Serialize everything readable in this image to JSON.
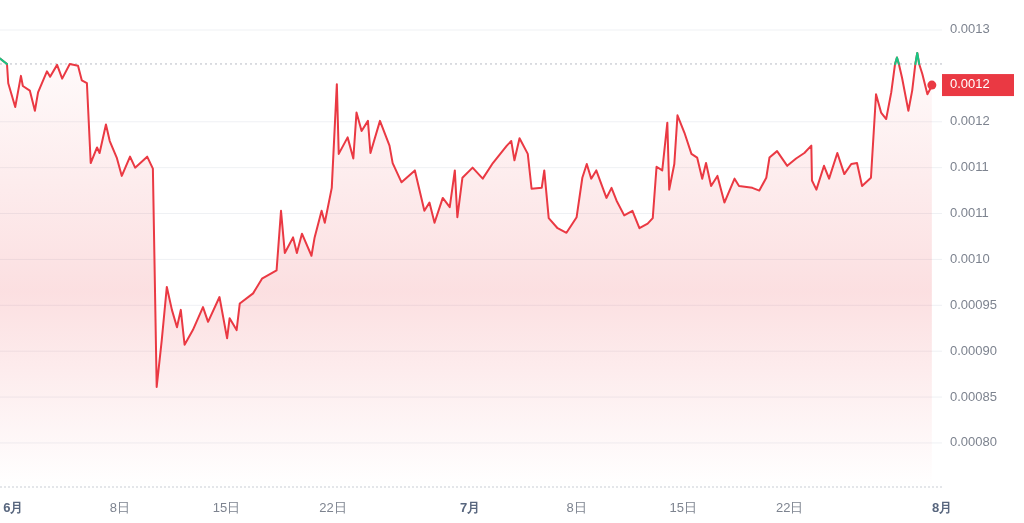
{
  "chart_data": {
    "type": "area",
    "x": [
      "--05-31T03:00",
      "--05-31T14:00",
      "--05-31T16:00",
      "--06-01T03:00",
      "--06-01T12:00",
      "--06-01T15:00",
      "--06-02T02:00",
      "--06-02T10:00",
      "--06-02T15:00",
      "--06-03T05:00",
      "--06-03T10:00",
      "--06-03T21:00",
      "--06-04T05:00",
      "--06-04T17:00",
      "--06-05T06:00",
      "--06-05T12:00",
      "--06-05T20:00",
      "--06-06T02:00",
      "--06-06T12:00",
      "--06-06T16:00",
      "--06-07T02:00",
      "--06-07T08:00",
      "--06-07T19:00",
      "--06-08T03:00",
      "--06-08T16:00",
      "--06-09T00:00",
      "--06-09T19:00",
      "--06-10T04:00",
      "--06-10T10:00",
      "--06-10T18:00",
      "--06-11T02:00",
      "--06-11T10:00",
      "--06-11T18:00",
      "--06-12T00:00",
      "--06-12T06:00",
      "--06-12T19:00",
      "--06-13T11:00",
      "--06-13T19:00",
      "--06-14T13:00",
      "--06-15T01:00",
      "--06-15T05:00",
      "--06-15T16:00",
      "--06-15T21:00",
      "--06-16T18:00",
      "--06-17T08:00",
      "--06-18T07:00",
      "--06-18T14:00",
      "--06-18T20:00",
      "--06-19T09:00",
      "--06-19T15:00",
      "--06-19T23:00",
      "--06-20T14:00",
      "--06-20T19:00",
      "--06-21T06:00",
      "--06-21T11:00",
      "--06-21T22:00",
      "--06-22T06:00",
      "--06-22T09:00",
      "--06-22T23:00",
      "--06-23T08:00",
      "--06-23T13:00",
      "--06-23T21:00",
      "--06-24T07:00",
      "--06-24T11:00",
      "--06-25T02:00",
      "--06-25T17:00",
      "--06-25T22:00",
      "--06-26T12:00",
      "--06-27T09:00",
      "--06-28T00:00",
      "--06-28T08:00",
      "--06-28T16:00",
      "--06-29T05:00",
      "--06-29T16:00",
      "--06-30T00:00",
      "--06-30T04:00",
      "--06-30T12:00",
      "--07-01T04:00",
      "--07-01T20:00",
      "--07-02T12:00",
      "--07-03T10:00",
      "--07-03T17:00",
      "--07-03T22:00",
      "--07-04T06:00",
      "--07-04T19:00",
      "--07-05T01:00",
      "--07-05T17:00",
      "--07-05T21:00",
      "--07-06T04:00",
      "--07-06T18:00",
      "--07-07T08:00",
      "--07-08T00:00",
      "--07-08T09:00",
      "--07-08T16:00",
      "--07-08T23:00",
      "--07-09T07:00",
      "--07-09T23:00",
      "--07-10T07:00",
      "--07-10T15:00",
      "--07-11T03:00",
      "--07-11T16:00",
      "--07-12T03:00",
      "--07-12T16:00",
      "--07-13T00:00",
      "--07-13T06:00",
      "--07-13T15:00",
      "--07-13T23:00",
      "--07-14T02:00",
      "--07-14T10:00",
      "--07-14T15:00",
      "--07-15T02:00",
      "--07-15T13:00",
      "--07-15T22:00",
      "--07-16T06:00",
      "--07-16T12:00",
      "--07-16T20:00",
      "--07-17T06:00",
      "--07-17T17:00",
      "--07-18T09:00",
      "--07-18T16:00",
      "--07-19T13:00",
      "--07-20T00:00",
      "--07-20T11:00",
      "--07-20T16:00",
      "--07-21T04:00",
      "--07-21T20:00",
      "--07-22T10:00",
      "--07-22T23:00",
      "--07-23T10:00",
      "--07-23T11:00",
      "--07-23T18:00",
      "--07-24T06:00",
      "--07-24T14:00",
      "--07-25T03:00",
      "--07-25T14:00",
      "--07-26T01:00",
      "--07-26T10:00",
      "--07-26T18:00",
      "--07-27T08:00",
      "--07-27T16:00",
      "--07-28T00:00",
      "--07-28T08:00",
      "--07-28T16:00",
      "--07-28T22:00",
      "--07-29T01:00",
      "--07-29T04:00",
      "--07-29T09:00",
      "--07-29T19:00",
      "--07-30T01:00",
      "--07-30T06:00",
      "--07-30T09:00",
      "--07-30T12:00",
      "--07-30T17:00",
      "--07-31T01:00",
      "--07-31T08:00"
    ],
    "series": [
      {
        "color": "#ea3943",
        "values": [
          0.001219,
          0.001213,
          0.001192,
          0.001166,
          0.0012,
          0.001189,
          0.001184,
          0.001162,
          0.001182,
          0.001205,
          0.001199,
          0.001212,
          0.001197,
          0.001213,
          0.001211,
          0.001195,
          0.001192,
          0.001105,
          0.001122,
          0.001116,
          0.001147,
          0.001129,
          0.001111,
          0.001091,
          0.001112,
          0.0011,
          0.001112,
          0.001099,
          0.000861,
          0.000912,
          0.00097,
          0.000945,
          0.000926,
          0.000945,
          0.000907,
          0.000923,
          0.000948,
          0.000932,
          0.000959,
          0.000914,
          0.000936,
          0.000923,
          0.000952,
          0.000963,
          0.000979,
          0.000988,
          0.001053,
          0.001007,
          0.001024,
          0.001007,
          0.001028,
          0.001004,
          0.001024,
          0.001053,
          0.00104,
          0.001078,
          0.001191,
          0.001115,
          0.001133,
          0.00111,
          0.00116,
          0.00114,
          0.001151,
          0.001116,
          0.001151,
          0.001124,
          0.001105,
          0.001084,
          0.001097,
          0.001053,
          0.001062,
          0.00104,
          0.001067,
          0.001057,
          0.001097,
          0.001046,
          0.001089,
          0.0011,
          0.001088,
          0.001105,
          0.001124,
          0.001129,
          0.001108,
          0.001132,
          0.001115,
          0.001077,
          0.001078,
          0.001097,
          0.001045,
          0.001034,
          0.001029,
          0.001046,
          0.001089,
          0.001104,
          0.001088,
          0.001097,
          0.001067,
          0.001078,
          0.001064,
          0.001048,
          0.001053,
          0.001034,
          0.001039,
          0.001045,
          0.001101,
          0.001097,
          0.001149,
          0.001076,
          0.001104,
          0.001157,
          0.001138,
          0.001115,
          0.001111,
          0.001088,
          0.001105,
          0.00108,
          0.001091,
          0.001062,
          0.001088,
          0.00108,
          0.001078,
          0.001075,
          0.001089,
          0.001111,
          0.001118,
          0.001102,
          0.00111,
          0.001116,
          0.001124,
          0.001086,
          0.001076,
          0.001102,
          0.001088,
          0.001116,
          0.001093,
          0.001104,
          0.001105,
          0.00108,
          0.001089,
          0.00118,
          0.00116,
          0.001153,
          0.001182,
          0.001213,
          0.00122,
          0.001213,
          0.001198,
          0.001162,
          0.001184,
          0.001213,
          0.001225,
          0.001213,
          0.001202,
          0.00118,
          0.001189
        ]
      },
      {
        "type": "line",
        "color": "#16c784",
        "values": [
          0.001219,
          0.001213,
          null,
          null,
          null,
          null,
          null,
          null,
          null,
          null,
          null,
          null,
          null,
          null,
          null,
          null,
          null,
          null,
          null,
          null,
          null,
          null,
          null,
          null,
          null,
          null,
          null,
          null,
          null,
          null,
          null,
          null,
          null,
          null,
          null,
          null,
          null,
          null,
          null,
          null,
          null,
          null,
          null,
          null,
          null,
          null,
          null,
          null,
          null,
          null,
          null,
          null,
          null,
          null,
          null,
          null,
          null,
          null,
          null,
          null,
          null,
          null,
          null,
          null,
          null,
          null,
          null,
          null,
          null,
          null,
          null,
          null,
          null,
          null,
          null,
          null,
          null,
          null,
          null,
          null,
          null,
          null,
          null,
          null,
          null,
          null,
          null,
          null,
          null,
          null,
          null,
          null,
          null,
          null,
          null,
          null,
          null,
          null,
          null,
          null,
          null,
          null,
          null,
          null,
          null,
          null,
          null,
          null,
          null,
          null,
          null,
          null,
          null,
          null,
          null,
          null,
          null,
          null,
          null,
          null,
          null,
          null,
          null,
          null,
          null,
          null,
          null,
          null,
          null,
          null,
          null,
          null,
          null,
          null,
          null,
          null,
          null,
          null,
          null,
          null,
          null,
          null,
          null,
          0.001213,
          0.00122,
          0.001213,
          null,
          null,
          null,
          0.001213,
          0.001225,
          0.001213,
          null,
          null,
          null
        ]
      }
    ],
    "xlim": [
      "--05-31T03:00",
      "--08-01T00:00"
    ],
    "xticks": [
      {
        "value": "--06-01",
        "label": "6月"
      },
      {
        "value": "--06-08",
        "label": "8日"
      },
      {
        "value": "--06-15",
        "label": "15日"
      },
      {
        "value": "--06-22",
        "label": "22日"
      },
      {
        "value": "--07-01",
        "label": "7月"
      },
      {
        "value": "--07-08",
        "label": "8日"
      },
      {
        "value": "--07-15",
        "label": "15日"
      },
      {
        "value": "--07-22",
        "label": "22日"
      },
      {
        "value": "--08-01",
        "label": "8月"
      }
    ],
    "ylim": [
      0.000752,
      0.00125
    ],
    "yticks": [
      {
        "value": 0.0008,
        "label": "0.00080"
      },
      0.00085,
      {
        "value": 0.0009,
        "label": "0.00090"
      },
      0.00095,
      {
        "value": 0.001,
        "label": "0.0010"
      },
      {
        "value": 0.00105,
        "label": "0.0011"
      },
      0.0011,
      {
        "value": 0.00115,
        "label": "0.0012"
      },
      {
        "value": 0.00125,
        "label": "0.0013"
      }
    ],
    "grid": "y",
    "ref_lines": [
      {
        "axis": "y",
        "value": 0.001213,
        "color": "#b8bcc4",
        "line_style": "dotted"
      }
    ],
    "annotations": [
      {
        "text": "0.0012",
        "x": "--07-31T08:00",
        "y": 0.00119
      }
    ]
  }
}
